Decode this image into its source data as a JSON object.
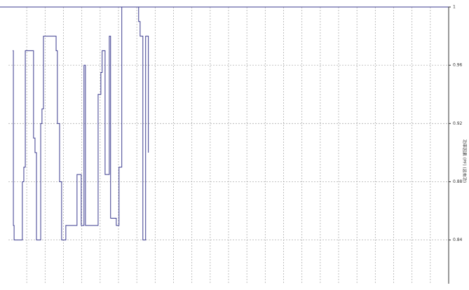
{
  "chart_data": {
    "type": "line",
    "step": true,
    "y_label": "功率因素 (PF) (总有功)",
    "x": [
      0.23,
      0.27,
      0.31,
      0.76,
      0.84,
      0.92,
      1.37,
      1.45,
      1.53,
      1.76,
      1.83,
      1.91,
      2.6,
      2.67,
      2.79,
      2.9,
      3.13,
      3.74,
      3.97,
      4.12,
      4.2,
      4.89,
      5.04,
      5.11,
      5.27,
      5.5,
      5.57,
      5.88,
      6.03,
      6.18,
      7.1,
      7.18,
      7.33,
      7.48,
      7.63
    ],
    "series": [
      {
        "color": "#3b3b8f",
        "values": [
          0.97,
          0.85,
          0.84,
          0.88,
          0.89,
          0.97,
          0.91,
          0.9,
          0.84,
          0.92,
          0.93,
          0.98,
          0.97,
          0.92,
          0.88,
          0.84,
          0.85,
          0.885,
          0.85,
          0.96,
          0.85,
          0.94,
          0.955,
          0.97,
          0.885,
          0.98,
          0.855,
          0.85,
          0.89,
          1.0,
          0.99,
          0.98,
          0.84,
          0.98,
          0.9
        ]
      }
    ],
    "xlim": [
      0,
      24
    ],
    "xticks": [
      1,
      2,
      3,
      4,
      5,
      6,
      7,
      8,
      9,
      10,
      11,
      12,
      13,
      14,
      15,
      16,
      17,
      18,
      19,
      20,
      21,
      22,
      23
    ],
    "ylim": [
      0.81,
      1
    ],
    "yticks": [
      0.84,
      0.88,
      0.92,
      0.96,
      1
    ],
    "y_axis_side": "right",
    "grid": true
  }
}
